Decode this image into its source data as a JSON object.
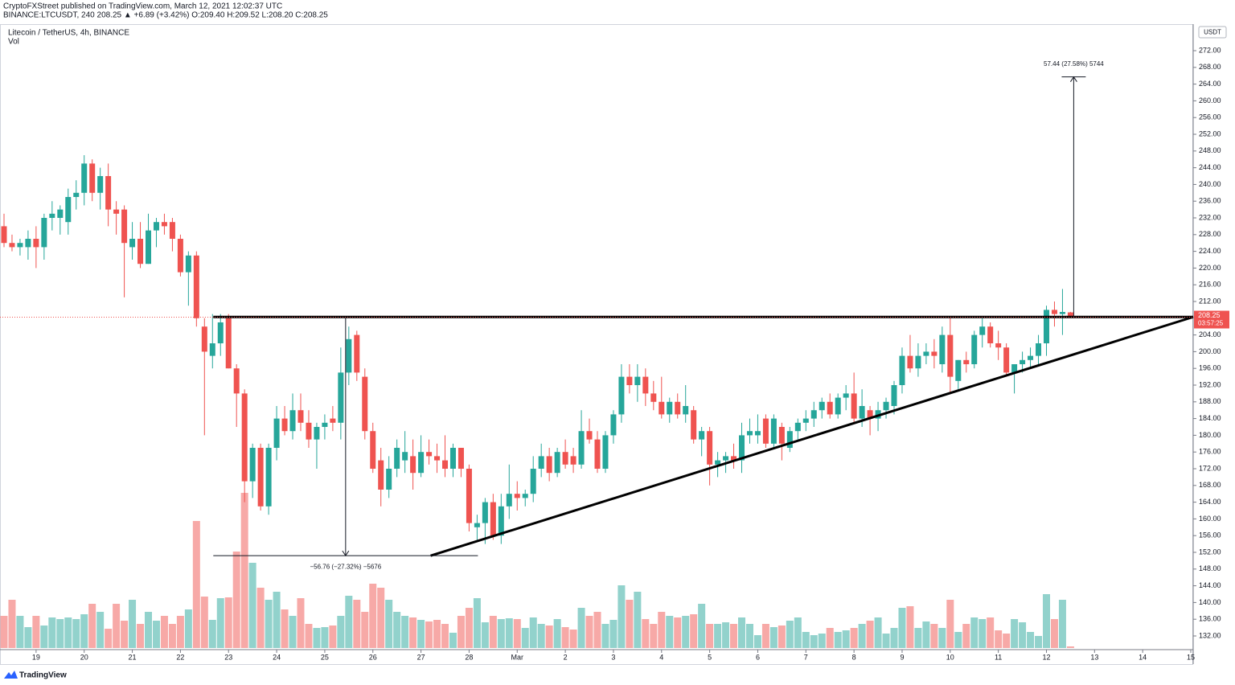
{
  "chart_data": {
    "type": "candlestick",
    "header": "CryptoFXStreet published on TradingView.com, March 12, 2021 12:02:37 UTC",
    "subheader": "BINANCE:LTCUSDT, 240  208.25  ▲ +6.89 (+3.42%)  O:209.40  H:209.52  L:208.20  C:208.25",
    "title": "Litecoin / TetherUS, 4h, BINANCE",
    "volume_label": "Vol",
    "axis_unit": "USDT",
    "countdown": "03:57:25",
    "logo": "TradingView",
    "up_color": "#26a69a",
    "down_color": "#ef5350",
    "grid": false,
    "xlim": [
      -0.5,
      148.3
    ],
    "ylim": [
      128.73,
      278.35
    ],
    "volume_lim": [
      0,
      250
    ],
    "xticks": [
      {
        "value": 4,
        "label": "19"
      },
      {
        "value": 10,
        "label": "20"
      },
      {
        "value": 16,
        "label": "21"
      },
      {
        "value": 22,
        "label": "22"
      },
      {
        "value": 28,
        "label": "23"
      },
      {
        "value": 34,
        "label": "24"
      },
      {
        "value": 40,
        "label": "25"
      },
      {
        "value": 46,
        "label": "26"
      },
      {
        "value": 52,
        "label": "27"
      },
      {
        "value": 58,
        "label": "28"
      },
      {
        "value": 64,
        "label": "Mar"
      },
      {
        "value": 70,
        "label": "2"
      },
      {
        "value": 76,
        "label": "3"
      },
      {
        "value": 82,
        "label": "4"
      },
      {
        "value": 88,
        "label": "5"
      },
      {
        "value": 94,
        "label": "6"
      },
      {
        "value": 100,
        "label": "7"
      },
      {
        "value": 106,
        "label": "8"
      },
      {
        "value": 112,
        "label": "9"
      },
      {
        "value": 118,
        "label": "10"
      },
      {
        "value": 124,
        "label": "11"
      },
      {
        "value": 130,
        "label": "12"
      },
      {
        "value": 136,
        "label": "13"
      },
      {
        "value": 142,
        "label": "14"
      },
      {
        "value": 148,
        "label": "15"
      }
    ],
    "yticks": [
      {
        "value": 132,
        "label": "132.00"
      },
      {
        "value": 136,
        "label": "136.00"
      },
      {
        "value": 140,
        "label": "140.00"
      },
      {
        "value": 144,
        "label": "144.00"
      },
      {
        "value": 148,
        "label": "148.00"
      },
      {
        "value": 152,
        "label": "152.00"
      },
      {
        "value": 156,
        "label": "156.00"
      },
      {
        "value": 160,
        "label": "160.00"
      },
      {
        "value": 164,
        "label": "164.00"
      },
      {
        "value": 168,
        "label": "168.00"
      },
      {
        "value": 172,
        "label": "172.00"
      },
      {
        "value": 176,
        "label": "176.00"
      },
      {
        "value": 180,
        "label": "180.00"
      },
      {
        "value": 184,
        "label": "184.00"
      },
      {
        "value": 188,
        "label": "188.00"
      },
      {
        "value": 192,
        "label": "192.00"
      },
      {
        "value": 196,
        "label": "196.00"
      },
      {
        "value": 200,
        "label": "200.00"
      },
      {
        "value": 204,
        "label": "204.00"
      },
      {
        "value": 212,
        "label": "212.00"
      },
      {
        "value": 216,
        "label": "216.00"
      },
      {
        "value": 220,
        "label": "220.00"
      },
      {
        "value": 224,
        "label": "224.00"
      },
      {
        "value": 228,
        "label": "228.00"
      },
      {
        "value": 232,
        "label": "232.00"
      },
      {
        "value": 236,
        "label": "236.00"
      },
      {
        "value": 240,
        "label": "240.00"
      },
      {
        "value": 244,
        "label": "244.00"
      },
      {
        "value": 248,
        "label": "248.00"
      },
      {
        "value": 252,
        "label": "252.00"
      },
      {
        "value": 256,
        "label": "256.00"
      },
      {
        "value": 260,
        "label": "260.00"
      },
      {
        "value": 264,
        "label": "264.00"
      },
      {
        "value": 268,
        "label": "268.00"
      },
      {
        "value": 272,
        "label": "272.00"
      }
    ],
    "open": [
      230,
      226,
      225,
      225,
      227,
      225,
      232,
      232,
      231,
      237,
      238,
      245,
      238,
      242,
      234,
      234,
      225,
      227,
      221,
      229,
      231,
      231,
      227,
      219,
      223,
      206,
      199,
      202,
      208,
      196,
      190,
      169,
      177,
      163,
      177,
      184,
      181,
      186,
      183,
      179,
      182,
      184,
      183,
      195,
      204,
      194,
      181,
      174,
      167,
      172,
      174,
      175,
      171,
      176,
      175,
      174,
      172,
      177,
      172,
      158,
      159,
      164,
      156,
      163,
      166,
      165,
      166,
      172,
      175,
      171,
      176,
      175,
      173,
      181,
      179,
      172,
      180,
      185,
      194,
      192,
      194,
      190,
      188,
      185,
      188,
      185,
      186,
      179,
      181,
      173,
      174,
      175,
      174,
      180,
      180,
      184,
      178,
      182,
      177,
      181,
      183,
      184,
      186,
      188,
      185,
      189,
      190,
      184,
      186,
      184,
      186,
      187,
      192,
      199,
      196,
      199,
      200,
      197,
      204,
      193,
      198,
      197,
      204,
      206,
      202,
      201,
      195,
      197,
      198,
      199,
      202,
      210,
      209,
      209.4
    ],
    "high": [
      233,
      228,
      227,
      229,
      230,
      233,
      236,
      235,
      239,
      241,
      247,
      246,
      244,
      245,
      236,
      235,
      231,
      231,
      233,
      232,
      233,
      232,
      228,
      224,
      224,
      208,
      209,
      209,
      209,
      197,
      191,
      178,
      178,
      178,
      187,
      187,
      190,
      190,
      186,
      183,
      185,
      187,
      201,
      206,
      205,
      196,
      183,
      177,
      175,
      179,
      181,
      179,
      180,
      179,
      178,
      180,
      178,
      177,
      173,
      161,
      165,
      166,
      166,
      173,
      169,
      167,
      175,
      178,
      177,
      177,
      179,
      177,
      186,
      184,
      181,
      181,
      186,
      197,
      197,
      197,
      196,
      193,
      194,
      189,
      190,
      192,
      187,
      182,
      182,
      176,
      176,
      178,
      183,
      184,
      185,
      185,
      185,
      183,
      182,
      184,
      186,
      188,
      189,
      190,
      190,
      192,
      195,
      191,
      187,
      188,
      189,
      193,
      201,
      204,
      202,
      202,
      203,
      206,
      208,
      198,
      200,
      205,
      208,
      207,
      205,
      202,
      197,
      200,
      201,
      204,
      211,
      212,
      215,
      209.52
    ],
    "low": [
      225,
      224,
      223,
      222,
      220,
      222,
      229,
      228,
      228,
      234,
      235,
      236,
      234,
      230,
      228,
      213,
      222,
      220,
      221,
      225,
      228,
      224,
      218,
      211,
      206,
      180,
      196,
      199,
      196,
      182,
      164,
      165,
      162,
      161,
      174,
      180,
      179,
      181,
      177,
      172,
      179,
      181,
      179,
      192,
      193,
      179,
      171,
      163,
      165,
      170,
      171,
      167,
      170,
      173,
      171,
      170,
      170,
      170,
      157,
      155,
      154,
      155,
      154,
      160,
      162,
      163,
      164,
      170,
      169,
      170,
      172,
      171,
      172,
      178,
      171,
      171,
      178,
      183,
      190,
      188,
      187,
      186,
      184,
      183,
      184,
      183,
      178,
      175,
      168,
      170,
      171,
      172,
      171,
      178,
      178,
      177,
      177,
      174,
      176,
      179,
      181,
      182,
      184,
      184,
      184,
      186,
      183,
      182,
      180,
      181,
      184,
      185,
      190,
      195,
      194,
      197,
      196,
      195,
      190,
      191,
      195,
      196,
      201,
      201,
      198,
      194,
      190,
      195,
      196,
      197,
      199,
      206,
      204,
      208.2
    ],
    "close": [
      226,
      225,
      226,
      227,
      225,
      232,
      233,
      234,
      237,
      238,
      245,
      238,
      242,
      234,
      233,
      226,
      227,
      221,
      229,
      231,
      230,
      227,
      219,
      223,
      208,
      200,
      202,
      207,
      196,
      190,
      169,
      177,
      163,
      177,
      184,
      181,
      186,
      183,
      179,
      182,
      183,
      183,
      195,
      203,
      195,
      181,
      172,
      167,
      172,
      177,
      176,
      171,
      176,
      175,
      174,
      172,
      177,
      172,
      159,
      159,
      164,
      156,
      163,
      166,
      165,
      166,
      172,
      175,
      171,
      176,
      173,
      173,
      181,
      179,
      172,
      180,
      185,
      194,
      192,
      194,
      190,
      188,
      185,
      188,
      185,
      187,
      179,
      181,
      173,
      174,
      175,
      174,
      180,
      181,
      181,
      178,
      184,
      178,
      181,
      183,
      184,
      186,
      188,
      185,
      189,
      190,
      184,
      187,
      184,
      186,
      188,
      192,
      199,
      196,
      199,
      200,
      199,
      204,
      194,
      198,
      197,
      204,
      206,
      202,
      201,
      195,
      197,
      198,
      199,
      202,
      210,
      209,
      209.5,
      208.25
    ],
    "volume": [
      40,
      60,
      40,
      26,
      40,
      28,
      38,
      36,
      38,
      36,
      42,
      55,
      45,
      24,
      55,
      34,
      60,
      30,
      45,
      34,
      40,
      30,
      40,
      48,
      158,
      64,
      35,
      62,
      63,
      120,
      193,
      106,
      75,
      60,
      70,
      48,
      40,
      62,
      30,
      25,
      26,
      28,
      40,
      65,
      60,
      45,
      80,
      75,
      60,
      45,
      40,
      38,
      35,
      33,
      35,
      30,
      19,
      40,
      50,
      62,
      32,
      40,
      36,
      37,
      36,
      25,
      38,
      30,
      28,
      36,
      26,
      23,
      50,
      40,
      45,
      30,
      35,
      78,
      60,
      70,
      36,
      30,
      45,
      40,
      38,
      40,
      42,
      55,
      30,
      30,
      32,
      30,
      38,
      30,
      16,
      30,
      26,
      28,
      34,
      38,
      20,
      16,
      18,
      25,
      20,
      22,
      25,
      30,
      34,
      38,
      18,
      25,
      50,
      52,
      25,
      33,
      30,
      25,
      60,
      20,
      30,
      38,
      36,
      38,
      22,
      18,
      36,
      32,
      20,
      15,
      67,
      36,
      60,
      2
    ],
    "drawings": [
      {
        "from": [
          26.1,
          208.3
        ],
        "to": [
          148.3,
          208.3
        ]
      },
      {
        "from": [
          53.2,
          151.2
        ],
        "to": [
          148.3,
          208.3
        ]
      }
    ],
    "measures": [
      {
        "x": 42.6,
        "from": 208.0,
        "to": 151.2,
        "span": [
          26.1,
          59.1
        ],
        "label": "−56.76 (−27.32%) −5676"
      },
      {
        "x": 133.4,
        "from": 208.28,
        "to": 265.72,
        "span": [
          131.9,
          134.9
        ],
        "label": "57.44 (27.58%) 5744"
      }
    ]
  }
}
